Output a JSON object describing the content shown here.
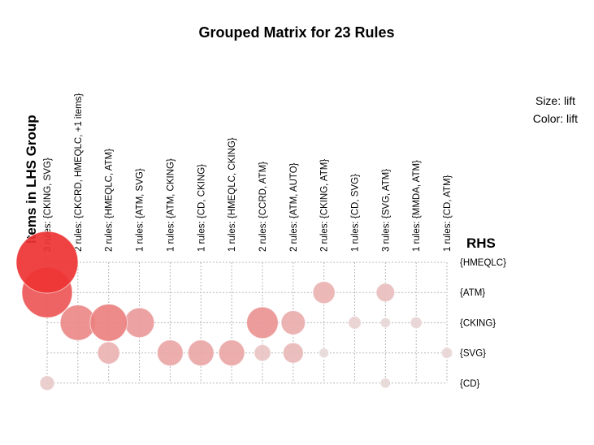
{
  "chart_data": {
    "type": "grouped-matrix",
    "title": "Grouped Matrix for 23 Rules",
    "size_label": "Size: lift",
    "color_label": "Color: lift",
    "lhs_axis_label": "Items in LHS Group",
    "rhs_axis_label": "RHS",
    "lhs_groups": [
      "3 rules: {CKING, SVG}",
      "2 rules: {CKCRD, HMEQLC, +1 items}",
      "2 rules: {HMEQLC, ATM}",
      "1 rules: {ATM, SVG}",
      "1 rules: {ATM, CKING}",
      "1 rules: {CD, CKING}",
      "1 rules: {HMEQLC, CKING}",
      "2 rules: {CCRD, ATM}",
      "2 rules: {ATM, AUTO}",
      "2 rules: {CKING, ATM}",
      "1 rules: {CD, SVG}",
      "3 rules: {SVG, ATM}",
      "1 rules: {MMDA, ATM}",
      "1 rules: {CD, ATM}"
    ],
    "rhs_items": [
      "{HMEQLC}",
      "{ATM}",
      "{CKING}",
      "{SVG}",
      "{CD}"
    ],
    "lift_range": [
      1.0,
      2.4
    ],
    "cells": [
      {
        "lhs": 0,
        "rhs": 0,
        "lift": 2.4
      },
      {
        "lhs": 0,
        "rhs": 1,
        "lift": 2.1
      },
      {
        "lhs": 0,
        "rhs": 4,
        "lift": 1.15
      },
      {
        "lhs": 1,
        "rhs": 2,
        "lift": 1.7
      },
      {
        "lhs": 2,
        "rhs": 2,
        "lift": 1.75
      },
      {
        "lhs": 2,
        "rhs": 3,
        "lift": 1.35
      },
      {
        "lhs": 3,
        "rhs": 2,
        "lift": 1.55
      },
      {
        "lhs": 4,
        "rhs": 3,
        "lift": 1.45
      },
      {
        "lhs": 5,
        "rhs": 3,
        "lift": 1.45
      },
      {
        "lhs": 6,
        "rhs": 3,
        "lift": 1.45
      },
      {
        "lhs": 7,
        "rhs": 2,
        "lift": 1.6
      },
      {
        "lhs": 7,
        "rhs": 3,
        "lift": 1.2
      },
      {
        "lhs": 8,
        "rhs": 2,
        "lift": 1.4
      },
      {
        "lhs": 8,
        "rhs": 3,
        "lift": 1.3
      },
      {
        "lhs": 9,
        "rhs": 1,
        "lift": 1.35
      },
      {
        "lhs": 9,
        "rhs": 3,
        "lift": 1.02
      },
      {
        "lhs": 10,
        "rhs": 2,
        "lift": 1.1
      },
      {
        "lhs": 11,
        "rhs": 1,
        "lift": 1.25
      },
      {
        "lhs": 11,
        "rhs": 2,
        "lift": 1.03
      },
      {
        "lhs": 11,
        "rhs": 4,
        "lift": 1.03
      },
      {
        "lhs": 12,
        "rhs": 2,
        "lift": 1.07
      },
      {
        "lhs": 13,
        "rhs": 3,
        "lift": 1.05
      }
    ],
    "color_low": "#e8dcdc",
    "color_high": "#ee3333"
  }
}
